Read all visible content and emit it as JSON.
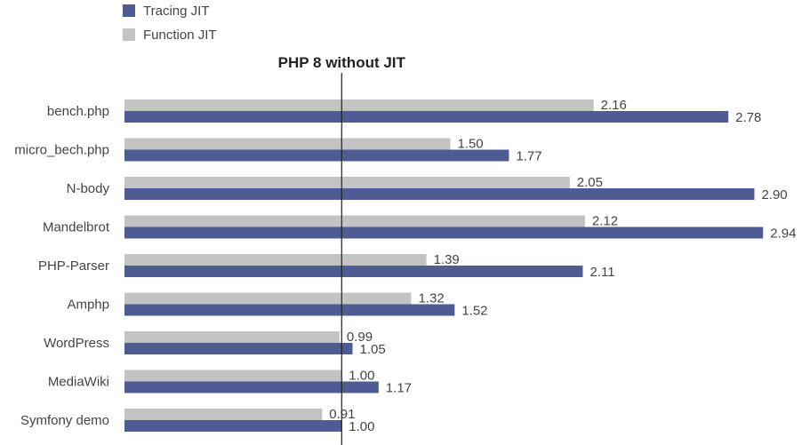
{
  "chart_data": {
    "type": "bar",
    "orientation": "horizontal",
    "title": "",
    "xlabel": "",
    "ylabel": "",
    "xlim": [
      0,
      2.98
    ],
    "grid": false,
    "legend_position": "top-left",
    "reference_line": {
      "value": 1.0,
      "label": "PHP 8 without JIT"
    },
    "categories": [
      "bench.php",
      "micro_bech.php",
      "N-body",
      "Mandelbrot",
      "PHP-Parser",
      "Amphp",
      "WordPress",
      "MediaWiki",
      "Symfony demo"
    ],
    "series": [
      {
        "name": "Tracing JIT",
        "color": "#4f5b93",
        "values": [
          2.78,
          1.77,
          2.9,
          2.94,
          2.11,
          1.52,
          1.05,
          1.17,
          1.0
        ],
        "labels": [
          "2.78",
          "1.77",
          "2.90",
          "2.94",
          "2.11",
          "1.52",
          "1.05",
          "1.17",
          "1.00"
        ]
      },
      {
        "name": "Function JIT",
        "color": "#c3c3c3",
        "values": [
          2.16,
          1.5,
          2.05,
          2.12,
          1.39,
          1.32,
          0.99,
          1.0,
          0.91
        ],
        "labels": [
          "2.16",
          "1.50",
          "2.05",
          "2.12",
          "1.39",
          "1.32",
          "0.99",
          "1.00",
          "0.91"
        ]
      }
    ]
  }
}
